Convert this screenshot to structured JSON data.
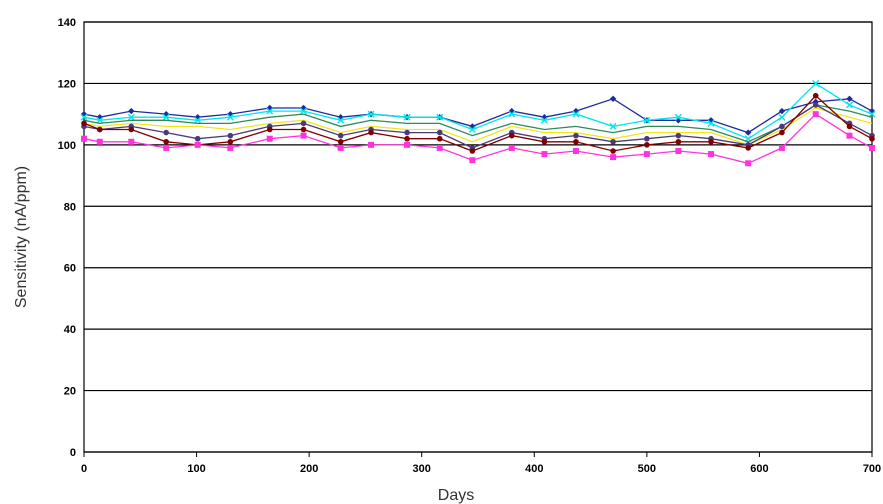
{
  "chart_data": {
    "type": "line",
    "title": "",
    "xlabel": "Days",
    "ylabel": "Sensitivity (nA/ppm)",
    "xlim": [
      0,
      700
    ],
    "ylim": [
      0,
      140
    ],
    "xticks": [
      0,
      100,
      200,
      300,
      400,
      500,
      600,
      700
    ],
    "yticks": [
      0,
      20,
      40,
      60,
      80,
      100,
      120,
      140
    ],
    "grid": "horizontal",
    "x": [
      0,
      14,
      42,
      73,
      101,
      130,
      165,
      195,
      228,
      255,
      287,
      316,
      345,
      380,
      409,
      437,
      470,
      500,
      528,
      557,
      590,
      620,
      650,
      680,
      700
    ],
    "series": [
      {
        "color": "#1f2a9e",
        "marker": "diamond",
        "values": [
          110,
          109,
          111,
          110,
          109,
          110,
          112,
          112,
          109,
          110,
          109,
          109,
          106,
          111,
          109,
          111,
          115,
          108,
          108,
          108,
          104,
          111,
          114,
          115,
          111
        ]
      },
      {
        "color": "#00e5ee",
        "marker": "x",
        "values": [
          109,
          108,
          109,
          109,
          108,
          109,
          111,
          111,
          108,
          110,
          109,
          109,
          105,
          110,
          108,
          110,
          106,
          108,
          109,
          107,
          102,
          109,
          120,
          113,
          110
        ]
      },
      {
        "color": "#2e8b57",
        "marker": "none",
        "values": [
          108,
          107,
          108,
          108,
          107,
          107,
          109,
          110,
          106,
          108,
          107,
          107,
          103,
          107,
          105,
          106,
          104,
          106,
          106,
          105,
          101,
          106,
          113,
          111,
          109
        ]
      },
      {
        "color": "#f2e61a",
        "marker": "none",
        "values": [
          107,
          106,
          107,
          106,
          106,
          105,
          107,
          108,
          104,
          106,
          105,
          105,
          101,
          106,
          104,
          104,
          102,
          104,
          104,
          104,
          100,
          105,
          112,
          109,
          107
        ]
      },
      {
        "color": "#4b3a7a",
        "marker": "circle",
        "values": [
          106,
          105,
          106,
          104,
          102,
          103,
          106,
          107,
          103,
          105,
          104,
          104,
          99,
          104,
          102,
          103,
          101,
          102,
          103,
          102,
          100,
          106,
          113,
          107,
          103
        ]
      },
      {
        "color": "#800000",
        "marker": "circle",
        "values": [
          107,
          105,
          105,
          101,
          100,
          101,
          105,
          105,
          101,
          104,
          102,
          102,
          98,
          103,
          101,
          101,
          98,
          100,
          101,
          101,
          99,
          104,
          116,
          106,
          102
        ]
      },
      {
        "color": "#ff33dd",
        "marker": "square",
        "values": [
          102,
          101,
          101,
          99,
          100,
          99,
          102,
          103,
          99,
          100,
          100,
          99,
          95,
          99,
          97,
          98,
          96,
          97,
          98,
          97,
          94,
          99,
          110,
          103,
          99
        ]
      }
    ]
  }
}
